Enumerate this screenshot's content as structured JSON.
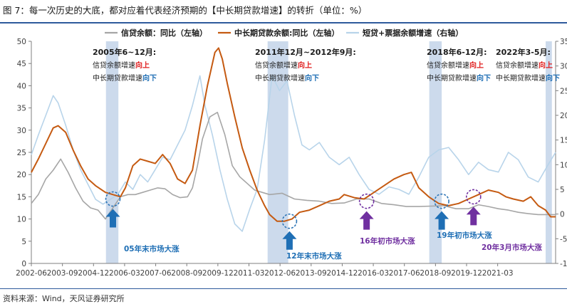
{
  "figure": {
    "title": "图 7：每一次历史的大底，都对应着代表经济预期的【中长期贷款增速】的转折（单位：%）",
    "source": "资料来源：Wind，天风证券研究所"
  },
  "colors": {
    "credit": "#a6a6a6",
    "midlong": "#c55a11",
    "shortbill": "#b8d4ea",
    "band": "#c3d3e9",
    "arrow_blue": "#1f6fb5",
    "arrow_purple": "#7030a0",
    "up_red": "#e02020",
    "down_blue": "#1f6fb5",
    "text_blue": "#1f6fb5",
    "text_purple": "#7030a0",
    "circle_blue": "#2e75b6",
    "circle_purple": "#7030a0",
    "title_rule": "#2e5a9c"
  },
  "chart_data": {
    "type": "line",
    "xlim": [
      2002.42,
      2023.5
    ],
    "ylim_left": [
      0,
      50
    ],
    "ylim_right": [
      -10,
      35
    ],
    "xticks": [
      {
        "label": "2002-06",
        "x": 2002.42
      },
      {
        "label": "2003-09",
        "x": 2003.67
      },
      {
        "label": "2004-12",
        "x": 2004.92
      },
      {
        "label": "2006-03",
        "x": 2006.17
      },
      {
        "label": "2007-06",
        "x": 2007.42
      },
      {
        "label": "2008-09",
        "x": 2008.67
      },
      {
        "label": "2009-12",
        "x": 2009.92
      },
      {
        "label": "2011-03",
        "x": 2011.17
      },
      {
        "label": "2012-06",
        "x": 2012.42
      },
      {
        "label": "2013-09",
        "x": 2013.67
      },
      {
        "label": "2014-12",
        "x": 2014.92
      },
      {
        "label": "2016-03",
        "x": 2016.17
      },
      {
        "label": "2017-06",
        "x": 2017.42
      },
      {
        "label": "2018-09",
        "x": 2018.67
      },
      {
        "label": "2019-12",
        "x": 2019.92
      },
      {
        "label": "2021-03",
        "x": 2021.17
      }
    ],
    "yticks_left": [
      "0",
      "5",
      "10",
      "15",
      "20",
      "25",
      "30",
      "35",
      "40",
      "45",
      "50"
    ],
    "yticks_right": [
      "-10",
      "-5",
      "0",
      "5",
      "10",
      "15",
      "20",
      "25",
      "30",
      "35"
    ],
    "legend": [
      "信贷余额：同比（左轴）",
      "中长期贷款余额:同比（左轴）",
      "短贷+票据余额增速（右轴）"
    ],
    "series": [
      {
        "name": "信贷余额：同比（左轴）",
        "axis": "left",
        "color": "#a6a6a6",
        "x": [
          2002.42,
          2002.7,
          2003.0,
          2003.3,
          2003.6,
          2003.9,
          2004.2,
          2004.5,
          2004.8,
          2005.1,
          2005.4,
          2005.7,
          2006.0,
          2006.3,
          2006.6,
          2006.9,
          2007.2,
          2007.5,
          2007.8,
          2008.1,
          2008.4,
          2008.7,
          2008.9,
          2009.1,
          2009.3,
          2009.6,
          2009.9,
          2010.2,
          2010.5,
          2010.8,
          2011.1,
          2011.4,
          2011.7,
          2012.0,
          2012.5,
          2013.0,
          2013.5,
          2014.0,
          2014.5,
          2015.0,
          2015.5,
          2016.0,
          2016.5,
          2017.0,
          2017.5,
          2018.0,
          2018.5,
          2019.0,
          2019.5,
          2020.0,
          2020.4,
          2020.8,
          2021.2,
          2021.6,
          2022.0,
          2022.4,
          2022.8,
          2023.2,
          2023.5
        ],
        "values": [
          13.5,
          15.5,
          19.0,
          21.0,
          23.5,
          20.5,
          17.0,
          14.0,
          12.5,
          12.0,
          10.0,
          12.5,
          15.0,
          15.5,
          15.5,
          16.0,
          16.5,
          17.0,
          16.8,
          15.5,
          14.8,
          15.0,
          17.0,
          22.0,
          28.0,
          33.0,
          34.0,
          29.0,
          22.0,
          19.5,
          18.0,
          16.5,
          16.0,
          15.5,
          15.8,
          14.5,
          14.2,
          14.0,
          13.5,
          13.6,
          14.5,
          14.5,
          13.5,
          13.2,
          12.8,
          12.8,
          12.9,
          13.0,
          12.3,
          12.3,
          13.2,
          12.8,
          12.3,
          12.0,
          11.5,
          11.2,
          11.0,
          11.0,
          11.0
        ]
      },
      {
        "name": "中长期贷款余额:同比（左轴）",
        "axis": "left",
        "color": "#c55a11",
        "x": [
          2002.42,
          2002.7,
          2003.0,
          2003.3,
          2003.5,
          2003.8,
          2004.1,
          2004.4,
          2004.7,
          2005.0,
          2005.4,
          2005.7,
          2006.0,
          2006.2,
          2006.5,
          2006.8,
          2007.1,
          2007.4,
          2007.7,
          2008.0,
          2008.3,
          2008.6,
          2008.9,
          2009.2,
          2009.5,
          2009.8,
          2009.95,
          2010.1,
          2010.3,
          2010.6,
          2010.9,
          2011.2,
          2011.5,
          2011.8,
          2012.0,
          2012.3,
          2012.6,
          2012.9,
          2013.2,
          2013.6,
          2014.0,
          2014.4,
          2014.8,
          2015.0,
          2015.4,
          2015.8,
          2016.2,
          2016.6,
          2017.0,
          2017.4,
          2017.7,
          2018.0,
          2018.4,
          2018.8,
          2019.2,
          2019.6,
          2020.0,
          2020.4,
          2020.8,
          2021.2,
          2021.5,
          2021.8,
          2022.2,
          2022.5,
          2022.8,
          2023.1,
          2023.3,
          2023.5
        ],
        "values": [
          20.5,
          23.5,
          27.0,
          30.5,
          31.0,
          29.5,
          25.5,
          22.0,
          19.0,
          17.5,
          16.0,
          15.5,
          15.0,
          17.0,
          22.0,
          23.5,
          23.0,
          22.5,
          24.5,
          22.5,
          19.0,
          18.0,
          21.0,
          31.0,
          40.0,
          47.5,
          48.5,
          46.0,
          40.5,
          33.0,
          26.0,
          21.0,
          16.5,
          13.0,
          11.0,
          9.5,
          9.5,
          10.0,
          11.5,
          12.0,
          13.0,
          14.0,
          14.5,
          15.5,
          14.8,
          14.5,
          16.0,
          17.5,
          19.0,
          20.0,
          20.5,
          17.0,
          15.0,
          13.5,
          13.0,
          13.5,
          14.5,
          15.5,
          16.5,
          16.0,
          15.0,
          14.5,
          14.0,
          15.0,
          13.0,
          12.0,
          10.5,
          10.5
        ]
      },
      {
        "name": "短贷+票据余额增速（右轴）",
        "axis": "right",
        "color": "#b8d4ea",
        "x": [
          2002.42,
          2002.7,
          2003.0,
          2003.3,
          2003.5,
          2003.8,
          2004.1,
          2004.4,
          2004.7,
          2005.0,
          2005.3,
          2005.6,
          2005.9,
          2006.2,
          2006.5,
          2006.8,
          2007.1,
          2007.4,
          2007.7,
          2008.0,
          2008.3,
          2008.6,
          2008.9,
          2009.2,
          2009.4,
          2009.7,
          2010.0,
          2010.3,
          2010.6,
          2010.9,
          2011.2,
          2011.5,
          2011.8,
          2012.1,
          2012.4,
          2012.7,
          2013.0,
          2013.3,
          2013.6,
          2014.0,
          2014.4,
          2014.8,
          2015.2,
          2015.6,
          2016.0,
          2016.4,
          2016.8,
          2017.2,
          2017.6,
          2018.0,
          2018.4,
          2018.8,
          2019.2,
          2019.6,
          2020.0,
          2020.4,
          2020.8,
          2021.2,
          2021.6,
          2022.0,
          2022.4,
          2022.8,
          2023.2,
          2023.5
        ],
        "values": [
          12.0,
          16.0,
          20.0,
          24.0,
          22.5,
          18.0,
          13.0,
          9.0,
          6.0,
          3.0,
          2.0,
          3.0,
          4.0,
          6.5,
          5.0,
          8.0,
          6.5,
          9.0,
          11.5,
          11.0,
          14.0,
          17.0,
          22.0,
          28.0,
          22.0,
          16.0,
          9.0,
          3.0,
          -2.0,
          -3.5,
          1.0,
          5.0,
          15.0,
          28.0,
          25.0,
          27.0,
          20.0,
          14.0,
          13.0,
          14.5,
          11.5,
          10.0,
          11.5,
          8.0,
          5.0,
          4.0,
          5.5,
          5.0,
          4.0,
          7.5,
          11.5,
          13.0,
          13.5,
          11.0,
          8.0,
          10.5,
          9.0,
          8.5,
          12.5,
          11.0,
          7.5,
          6.5,
          10.0,
          12.5
        ]
      }
    ],
    "bands": [
      {
        "from": 2005.42,
        "to": 2005.92
      },
      {
        "from": 2011.92,
        "to": 2012.75
      },
      {
        "from": 2018.42,
        "to": 2018.92
      },
      {
        "from": 2023.1,
        "to": 2023.35
      }
    ],
    "annotations": [
      {
        "title": "2005年6~12月:",
        "line1_pre": "信贷余额增速",
        "line1_em": "向上",
        "line2_pre": "中长期贷款增速",
        "line2_em": "向下",
        "anchor_x": 2004.1
      },
      {
        "title": "2011年12月~2012年9月:",
        "line1_pre": "信贷余额增速",
        "line1_em": "向上",
        "line2_pre": "中长期贷款增速",
        "line2_em": "向下",
        "anchor_x": 2011.3
      },
      {
        "title": "2018年6-12月:",
        "line1_pre": "信贷余额增速",
        "line1_em": "向上",
        "line2_pre": "中长期贷款增速",
        "line2_em": "向下",
        "anchor_x": 2018.1
      },
      {
        "title": "2022年3-5月:",
        "line1_pre": "信贷余额增速",
        "line1_em": "向上",
        "line2_pre": "中长期贷款增速",
        "line2_em": "向下",
        "anchor_x": 2020.75
      }
    ],
    "market_bottoms": [
      {
        "label": "05年末市场大涨",
        "x": 2005.7,
        "y": 14.5,
        "color": "blue"
      },
      {
        "label": "12年末市场大涨",
        "x": 2012.8,
        "y": 9.5,
        "color": "blue"
      },
      {
        "label": "16年初市场大涨",
        "x": 2015.9,
        "y": 14.0,
        "color": "purple"
      },
      {
        "label": "19年初市场大涨",
        "x": 2018.92,
        "y": 14.0,
        "color": "blue"
      },
      {
        "label": "20年3月市场大涨",
        "x": 2020.2,
        "y": 15.0,
        "color": "purple"
      }
    ]
  }
}
